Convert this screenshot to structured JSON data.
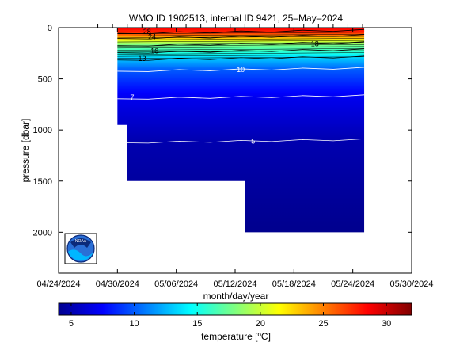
{
  "chart_data": {
    "type": "heatmap",
    "title": "WMO ID 1902513, internal ID 9421, 25–May–2024",
    "xlabel": "month/day/year",
    "ylabel": "pressure [dbar]",
    "x_ticks": [
      "04/24/2024",
      "04/30/2024",
      "05/06/2024",
      "05/12/2024",
      "05/18/2024",
      "05/24/2024",
      "05/30/2024"
    ],
    "x_range": [
      "04/24/2024",
      "05/30/2024"
    ],
    "y_ticks": [
      0,
      500,
      1000,
      1500,
      2000
    ],
    "y_range": [
      0,
      2400
    ],
    "y_reversed": true,
    "profiles": [
      {
        "date": "04/30/2024",
        "max_pressure": 950
      },
      {
        "date": "05/01/2024",
        "max_pressure": 1500
      },
      {
        "date": "05/13/2024",
        "max_pressure": 2000
      }
    ],
    "last_profile_date": "05/25/2024",
    "contour_levels": [
      {
        "value": 5,
        "pressure": 1110
      },
      {
        "value": 7,
        "pressure": 680
      },
      {
        "value": 10,
        "pressure": 410
      },
      {
        "value": 13,
        "pressure": 300
      },
      {
        "value": 16,
        "pressure": 230
      },
      {
        "value": 18,
        "pressure": 160
      },
      {
        "value": 24,
        "pressure": 90
      },
      {
        "value": 28,
        "pressure": 40
      }
    ],
    "contour_labels": [
      "5",
      "7",
      "10",
      "13",
      "16",
      "18",
      "24",
      "28"
    ],
    "colorbar": {
      "label": "temperature [°C]",
      "range": [
        4,
        32
      ],
      "ticks": [
        5,
        10,
        15,
        20,
        25,
        30
      ],
      "colors": [
        "#00008f",
        "#0000ff",
        "#00ffff",
        "#ffff00",
        "#ff0000",
        "#800000"
      ]
    },
    "logo": "NOAA"
  }
}
